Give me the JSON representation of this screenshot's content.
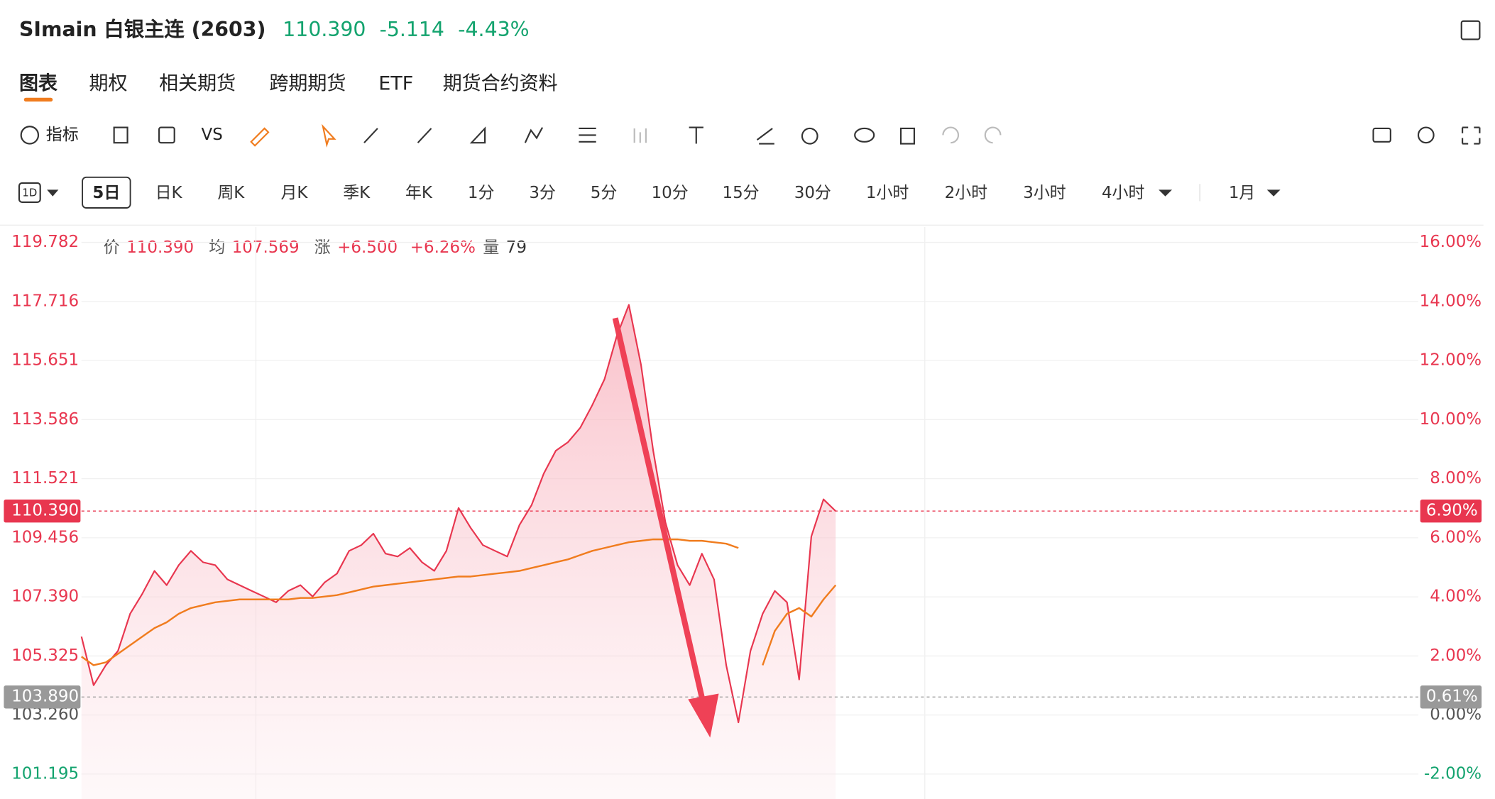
{
  "header": {
    "symbol": "SImain 白银主连 (2603)",
    "price": "110.390",
    "change": "-5.114",
    "change_pct": "-4.43%"
  },
  "tabs": [
    "图表",
    "期权",
    "相关期货",
    "跨期期货",
    "ETF",
    "期货合约资料"
  ],
  "toolbar": {
    "indicator": "指标",
    "compare": "VS"
  },
  "intervals": {
    "icon": "1D",
    "items": [
      "5日",
      "日K",
      "周K",
      "月K",
      "季K",
      "年K",
      "1分",
      "3分",
      "5分",
      "10分",
      "15分",
      "30分",
      "1小时",
      "2小时",
      "3小时",
      "4小时",
      "1月"
    ]
  },
  "info": [
    [
      "价",
      "110.390"
    ],
    [
      "均",
      "107.569"
    ],
    [
      "涨",
      "+6.500"
    ],
    [
      "",
      "+6.26%"
    ],
    [
      "量",
      "79"
    ]
  ],
  "chart_data": {
    "type": "line",
    "ylim": [
      100.258,
      120.318
    ],
    "yticks": [
      {
        "value": 119.782,
        "label": "119.782"
      },
      {
        "value": 117.716,
        "label": "117.716"
      },
      {
        "value": 115.651,
        "label": "115.651"
      },
      {
        "value": 113.586,
        "label": "113.586"
      },
      {
        "value": 111.521,
        "label": "111.521"
      },
      {
        "value": 109.456,
        "label": "109.456"
      },
      {
        "value": 107.39,
        "label": "107.390"
      },
      {
        "value": 105.325,
        "label": "105.325"
      },
      {
        "value": 103.26,
        "label": "103.260"
      },
      {
        "value": 101.195,
        "label": "101.195"
      }
    ],
    "y2lim": [
      -2.91,
      16.52
    ],
    "y2ticks": [
      {
        "value": 16,
        "label": "16.00%"
      },
      {
        "value": 14,
        "label": "14.00%"
      },
      {
        "value": 12,
        "label": "12.00%"
      },
      {
        "value": 10,
        "label": "10.00%"
      },
      {
        "value": 8,
        "label": "8.00%"
      },
      {
        "value": 6,
        "label": "6.00%"
      },
      {
        "value": 4,
        "label": "4.00%"
      },
      {
        "value": 2,
        "label": "2.00%"
      },
      {
        "value": 0,
        "label": "0.00%"
      },
      {
        "value": -2,
        "label": "-2.00%"
      }
    ],
    "series": [
      {
        "color": "#e8364f",
        "values": [
          106.0,
          104.3,
          105.0,
          105.5,
          106.8,
          107.5,
          108.3,
          107.8,
          108.5,
          109.0,
          108.6,
          108.5,
          108.0,
          107.8,
          107.6,
          107.4,
          107.2,
          107.6,
          107.8,
          107.4,
          107.9,
          108.2,
          109.0,
          109.2,
          109.6,
          108.9,
          108.8,
          109.1,
          108.6,
          108.3,
          109.0,
          110.5,
          109.8,
          109.2,
          109.0,
          108.8,
          109.9,
          110.6,
          111.7,
          112.5,
          112.8,
          113.3,
          114.1,
          115.0,
          116.5,
          117.6,
          115.5,
          112.5,
          110.0,
          108.5,
          107.8,
          108.9,
          108.0,
          105.0,
          103.0,
          105.5,
          106.8,
          107.6,
          107.2,
          104.5,
          109.5,
          110.8,
          110.39
        ]
      },
      {
        "color": "#f07c1e",
        "values": [
          105.3,
          105.0,
          105.1,
          105.4,
          105.7,
          106.0,
          106.3,
          106.5,
          106.8,
          107.0,
          107.1,
          107.2,
          107.25,
          107.3,
          107.3,
          107.3,
          107.3,
          107.3,
          107.35,
          107.35,
          107.4,
          107.45,
          107.55,
          107.65,
          107.75,
          107.8,
          107.85,
          107.9,
          107.95,
          108.0,
          108.05,
          108.1,
          108.1,
          108.15,
          108.2,
          108.25,
          108.3,
          108.4,
          108.5,
          108.6,
          108.7,
          108.85,
          109.0,
          109.1,
          109.2,
          109.3,
          109.35,
          109.4,
          109.4,
          109.4,
          109.35,
          109.35,
          109.3,
          109.25,
          109.1,
          null,
          105.0,
          106.2,
          106.8,
          107.0,
          106.7,
          107.3,
          107.8
        ]
      }
    ],
    "price_line": {
      "value": 110.39,
      "label": "110.390",
      "pct": {
        "value": 6.9,
        "label": "6.90%"
      }
    },
    "base_line": {
      "value": 103.89,
      "label": "103.890",
      "pct": {
        "value": 0.61,
        "label": "0.61%"
      }
    },
    "grid": true
  }
}
